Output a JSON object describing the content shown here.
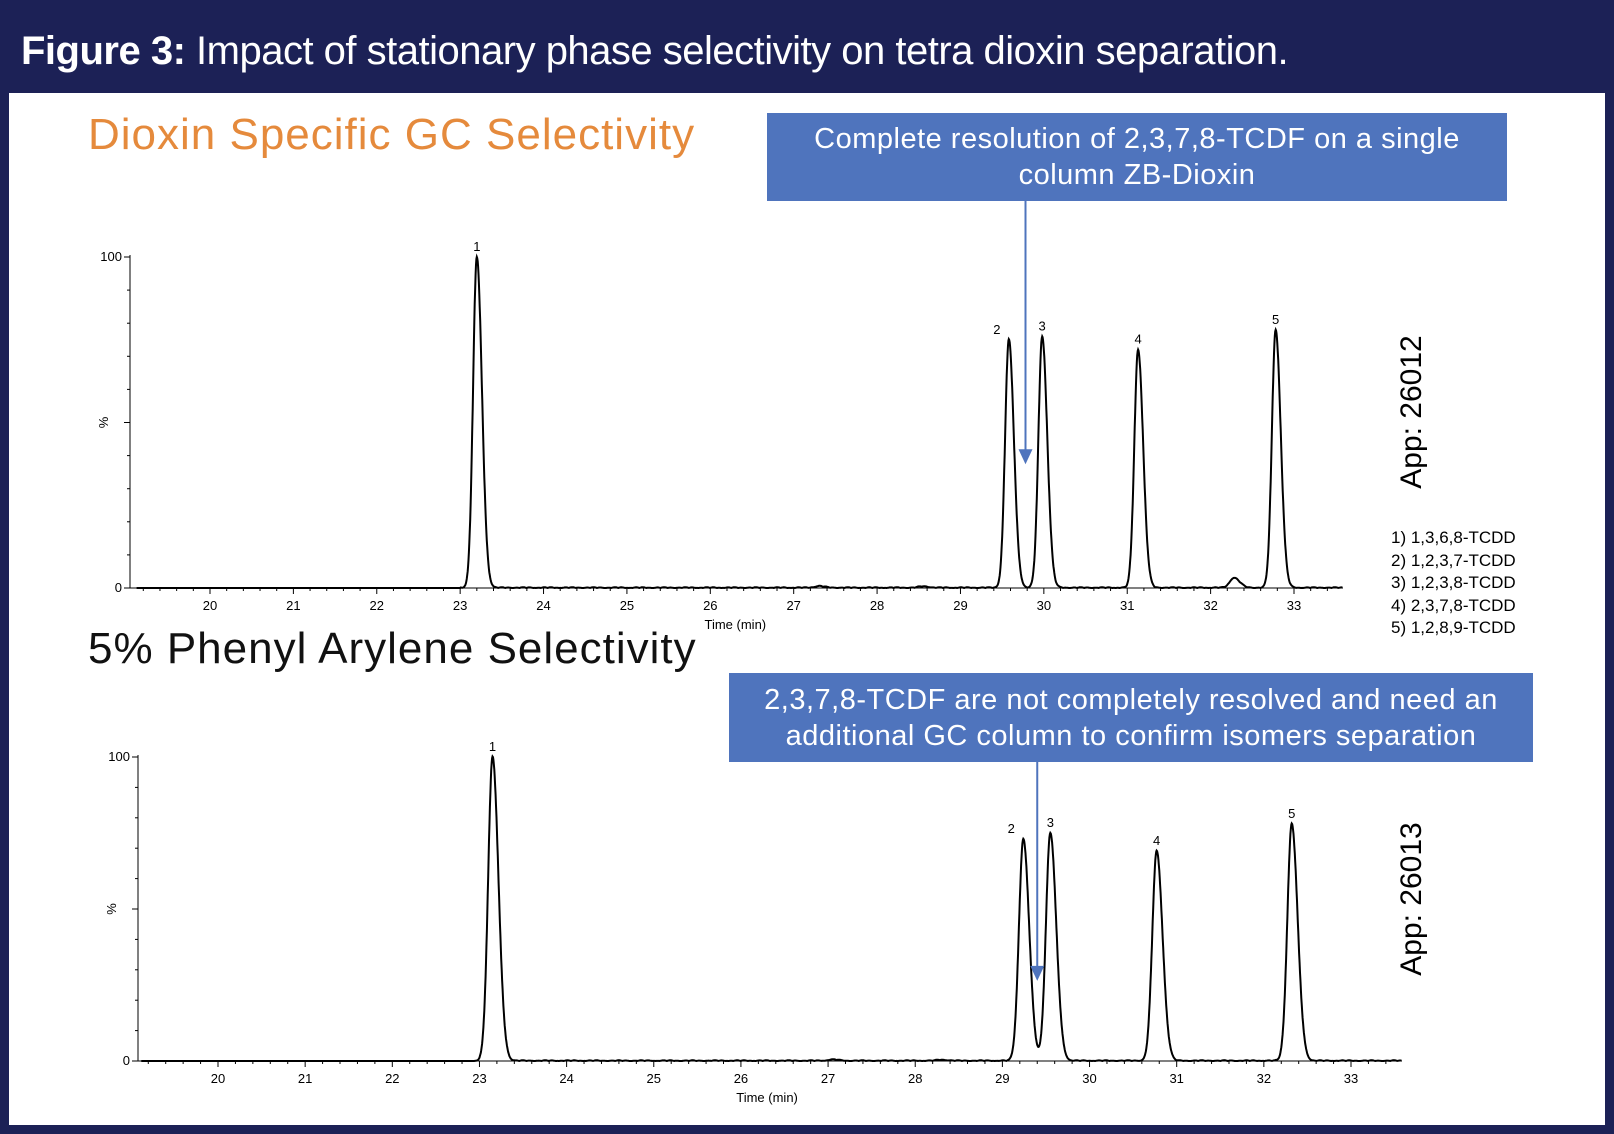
{
  "header": {
    "figure_label": "Figure 3:",
    "caption": "Impact of stationary phase selectivity on tetra dioxin separation."
  },
  "colors": {
    "header_bg": "#1c2156",
    "callout_bg": "#4f74bd",
    "title1": "#e58a3c",
    "arrow": "#4f74bd"
  },
  "panels": [
    {
      "title": "Dioxin  Specific GC Selectivity",
      "callout": "Complete resolution of 2,3,7,8-TCDF on a single column ZB-Dioxin",
      "app": "App: 26012"
    },
    {
      "title": "5% Phenyl Arylene Selectivity",
      "callout": "2,3,7,8-TCDF are not completely resolved and need an additional GC column to confirm isomers separation",
      "app": "App: 26013"
    }
  ],
  "legend": [
    "1) 1,3,6,8-TCDD",
    "2) 1,2,3,7-TCDD",
    "3) 1,2,3,8-TCDD",
    "4) 2,3,7,8-TCDD",
    "5) 1,2,8,9-TCDD"
  ],
  "chart_data": [
    {
      "type": "line",
      "title": "Dioxin  Specific GC Selectivity",
      "xlabel": "Time (min)",
      "ylabel": "%",
      "xlim": [
        19.1,
        33.6
      ],
      "ylim": [
        0,
        100
      ],
      "x_ticks": [
        20,
        21,
        22,
        23,
        24,
        25,
        26,
        27,
        28,
        29,
        30,
        31,
        32,
        33
      ],
      "y_ticks": [
        0,
        100
      ],
      "peaks": [
        {
          "label": "1",
          "rt": 23.2,
          "height": 100
        },
        {
          "label": "2",
          "rt": 29.58,
          "height": 75
        },
        {
          "label": "3",
          "rt": 29.98,
          "height": 76
        },
        {
          "label": "4",
          "rt": 31.13,
          "height": 72
        },
        {
          "label": "5",
          "rt": 32.78,
          "height": 78
        }
      ],
      "minor_peaks": [
        {
          "rt": 32.28,
          "height": 3
        },
        {
          "rt": 27.3,
          "height": 0.5
        },
        {
          "rt": 28.55,
          "height": 0.4
        }
      ],
      "arrow_rt": 29.78,
      "arrow_level": 38
    },
    {
      "type": "line",
      "title": "5% Phenyl Arylene Selectivity",
      "xlabel": "Time (min)",
      "ylabel": "%",
      "xlim": [
        19.1,
        33.6
      ],
      "ylim": [
        0,
        100
      ],
      "x_ticks": [
        20,
        21,
        22,
        23,
        24,
        25,
        26,
        27,
        28,
        29,
        30,
        31,
        32,
        33
      ],
      "y_ticks": [
        0,
        100
      ],
      "peaks": [
        {
          "label": "1",
          "rt": 23.15,
          "height": 100
        },
        {
          "label": "2",
          "rt": 29.24,
          "height": 73
        },
        {
          "label": "3",
          "rt": 29.55,
          "height": 75
        },
        {
          "label": "4",
          "rt": 30.77,
          "height": 69
        },
        {
          "label": "5",
          "rt": 32.32,
          "height": 78
        }
      ],
      "minor_peaks": [
        {
          "rt": 27.05,
          "height": 0.4
        },
        {
          "rt": 28.3,
          "height": 0.3
        }
      ],
      "arrow_rt": 29.4,
      "arrow_level": 27
    }
  ]
}
